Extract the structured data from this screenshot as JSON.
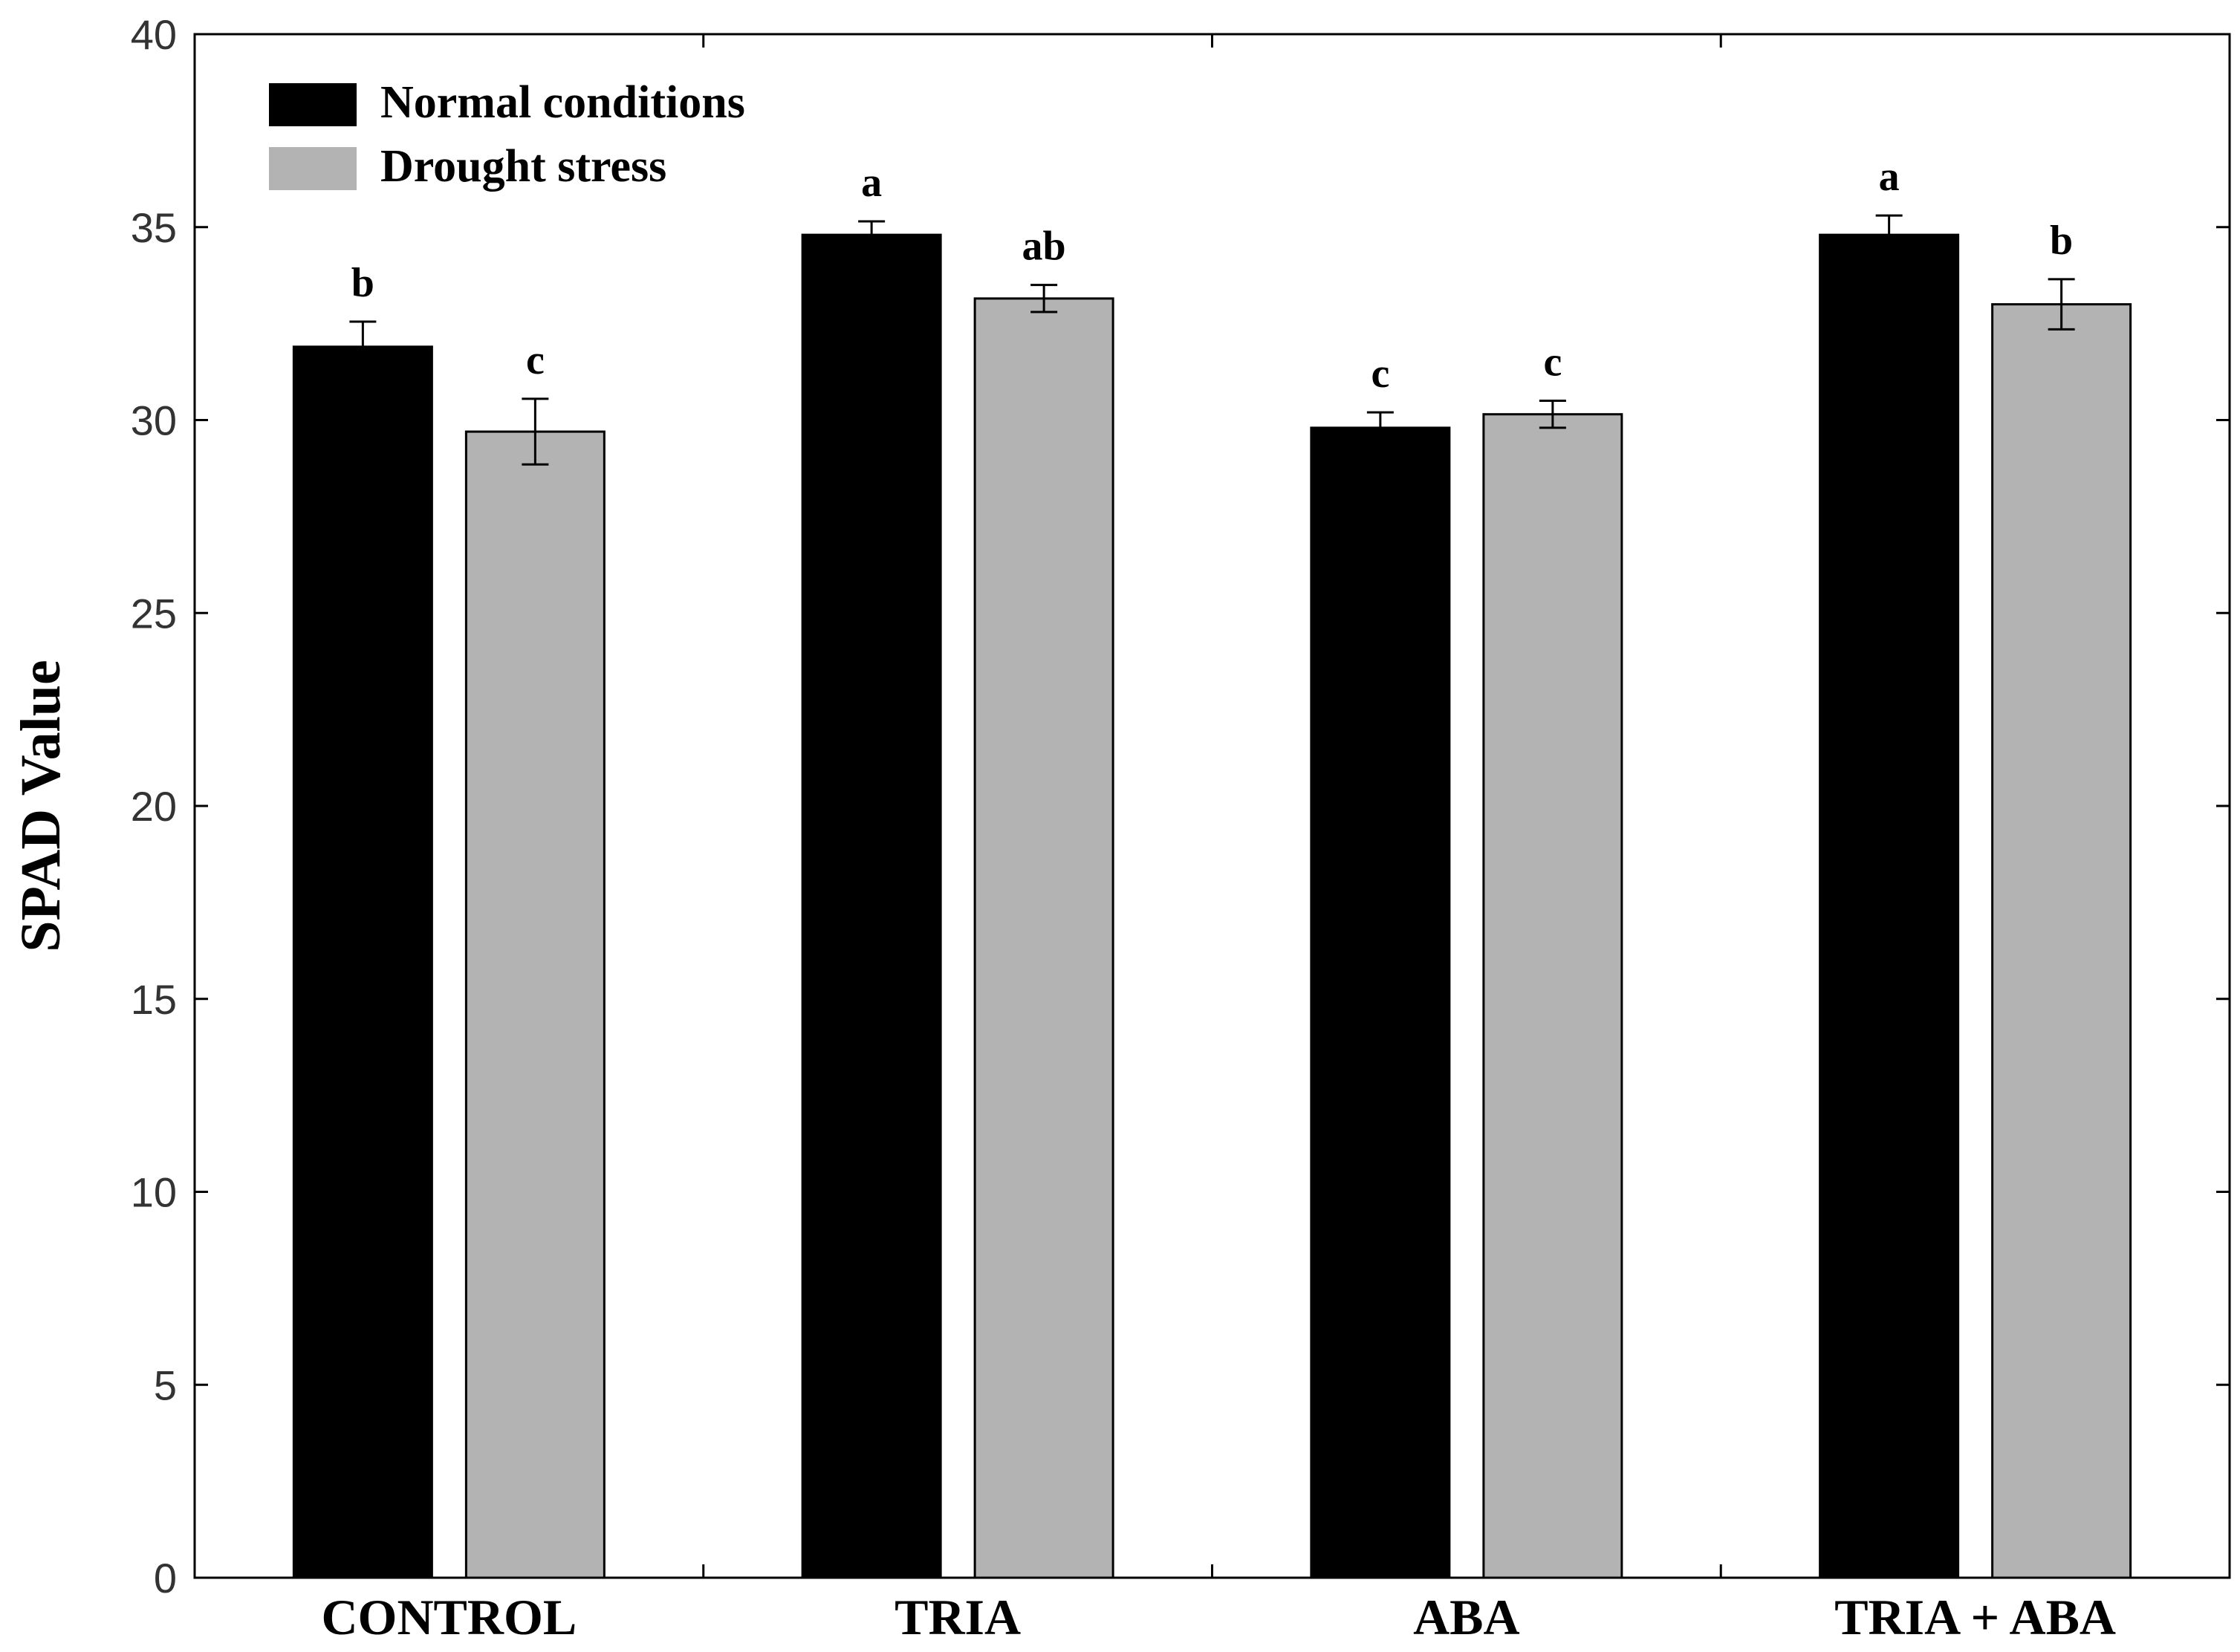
{
  "chart_data": {
    "type": "bar",
    "title": "",
    "xlabel": "",
    "ylabel": "SPAD Value",
    "ylim": [
      0,
      40
    ],
    "yticks": [
      0,
      5,
      10,
      15,
      20,
      25,
      30,
      35,
      40
    ],
    "grid": false,
    "legend_position": "top-left",
    "categories": [
      "CONTROL",
      "TRIA",
      "ABA",
      "TRIA + ABA"
    ],
    "series": [
      {
        "name": "Normal conditions",
        "color": "#000000",
        "values": [
          31.9,
          34.8,
          29.8,
          34.8
        ],
        "errors": [
          0.65,
          0.35,
          0.4,
          0.5
        ],
        "letters": [
          "b",
          "a",
          "c",
          "a"
        ]
      },
      {
        "name": "Drought stress",
        "color": "#b3b3b3",
        "values": [
          29.7,
          33.15,
          30.15,
          33.0
        ],
        "errors": [
          0.85,
          0.35,
          0.35,
          0.65
        ],
        "letters": [
          "c",
          "ab",
          "c",
          "b"
        ]
      }
    ]
  }
}
